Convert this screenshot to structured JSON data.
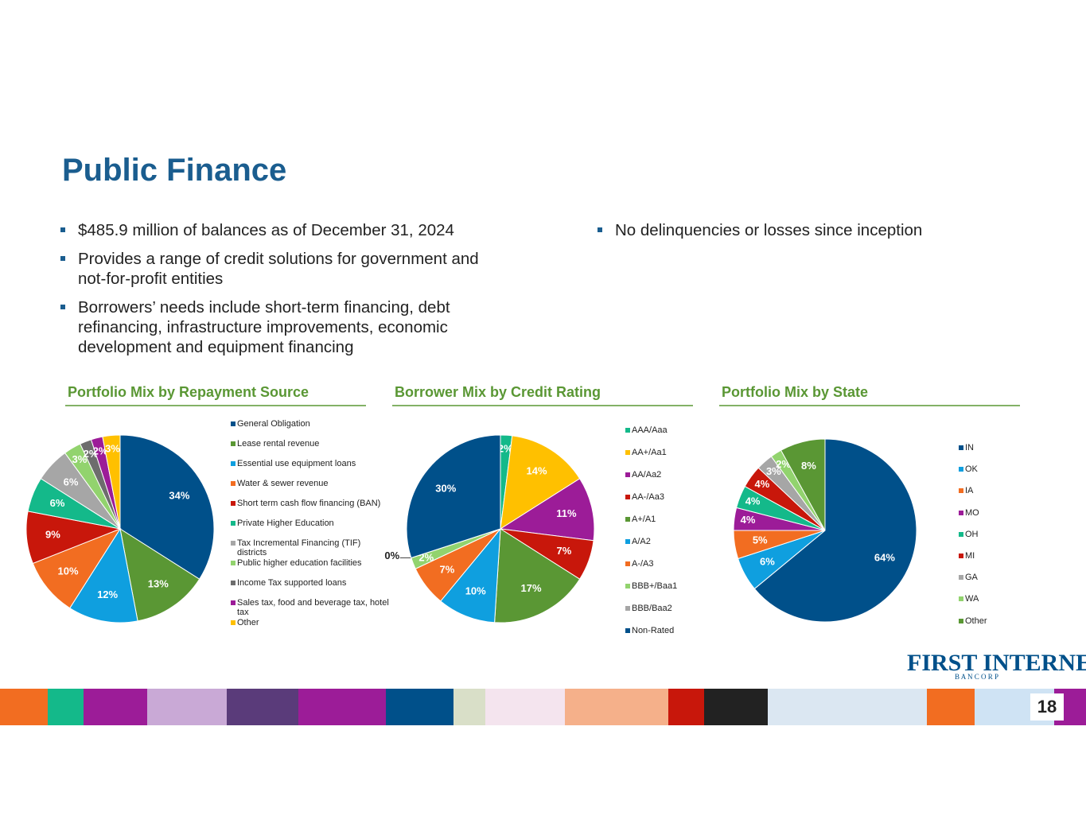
{
  "header": {
    "title": "Public Finance"
  },
  "bullets_left": [
    "$485.9 million of balances as of December 31, 2024",
    "Provides a range of credit solutions for government and not-for-profit entities",
    "Borrowers’ needs include short-term financing, debt refinancing, infrastructure improvements, economic development and equipment financing"
  ],
  "bullets_right": [
    "No delinquencies or losses since inception"
  ],
  "chart_data": [
    {
      "type": "pie",
      "title": "Portfolio Mix by Repayment Source",
      "categories": [
        "General Obligation",
        "Lease rental revenue",
        "Essential use equipment loans",
        "Water & sewer revenue",
        "Short term cash flow financing (BAN)",
        "Private Higher Education",
        "Tax Incremental Financing (TIF) districts",
        "Public higher education facilities",
        "Income Tax supported loans",
        "Sales tax, food and beverage tax, hotel tax",
        "Other"
      ],
      "values": [
        34,
        13,
        12,
        10,
        9,
        6,
        6,
        3,
        2,
        2,
        3
      ],
      "value_labels": [
        "34%",
        "13%",
        "12%",
        "10%",
        "9%",
        "6%",
        "6%",
        "3%",
        "2%",
        "2%",
        "3%"
      ],
      "colors": [
        "#00508a",
        "#5a9734",
        "#0f9fdf",
        "#f26d21",
        "#c8170b",
        "#14b98a",
        "#a6a6a6",
        "#92d36e",
        "#6d6d6d",
        "#9c1c98",
        "#ffc000"
      ]
    },
    {
      "type": "pie",
      "title": "Borrower Mix by Credit Rating",
      "categories": [
        "AAA/Aaa",
        "AA+/Aa1",
        "AA/Aa2",
        "AA-/Aa3",
        "A+/A1",
        "A/A2",
        "A-/A3",
        "BBB+/Baa1",
        "BBB/Baa2",
        "Non-Rated"
      ],
      "values": [
        2,
        14,
        11,
        7,
        17,
        10,
        7,
        2,
        0,
        30
      ],
      "value_labels": [
        "2%",
        "14%",
        "11%",
        "7%",
        "17%",
        "10%",
        "7%",
        "2%",
        "0%",
        "30%"
      ],
      "colors": [
        "#14b98a",
        "#ffc000",
        "#9c1c98",
        "#c8170b",
        "#5a9734",
        "#0f9fdf",
        "#f26d21",
        "#92d36e",
        "#a6a6a6",
        "#00508a"
      ]
    },
    {
      "type": "pie",
      "title": "Portfolio Mix by State",
      "categories": [
        "IN",
        "OK",
        "IA",
        "MO",
        "OH",
        "MI",
        "GA",
        "WA",
        "Other"
      ],
      "values": [
        64,
        6,
        5,
        4,
        4,
        4,
        3,
        2,
        8
      ],
      "value_labels": [
        "64%",
        "6%",
        "5%",
        "4%",
        "4%",
        "4%",
        "3%",
        "2%",
        "8%"
      ],
      "colors": [
        "#00508a",
        "#0f9fdf",
        "#f26d21",
        "#9c1c98",
        "#14b98a",
        "#c8170b",
        "#a6a6a6",
        "#92d36e",
        "#5a9734"
      ]
    }
  ],
  "logo": {
    "name": "FIRST INTERNET",
    "sub": "B A N C O R P"
  },
  "page_number": "18"
}
